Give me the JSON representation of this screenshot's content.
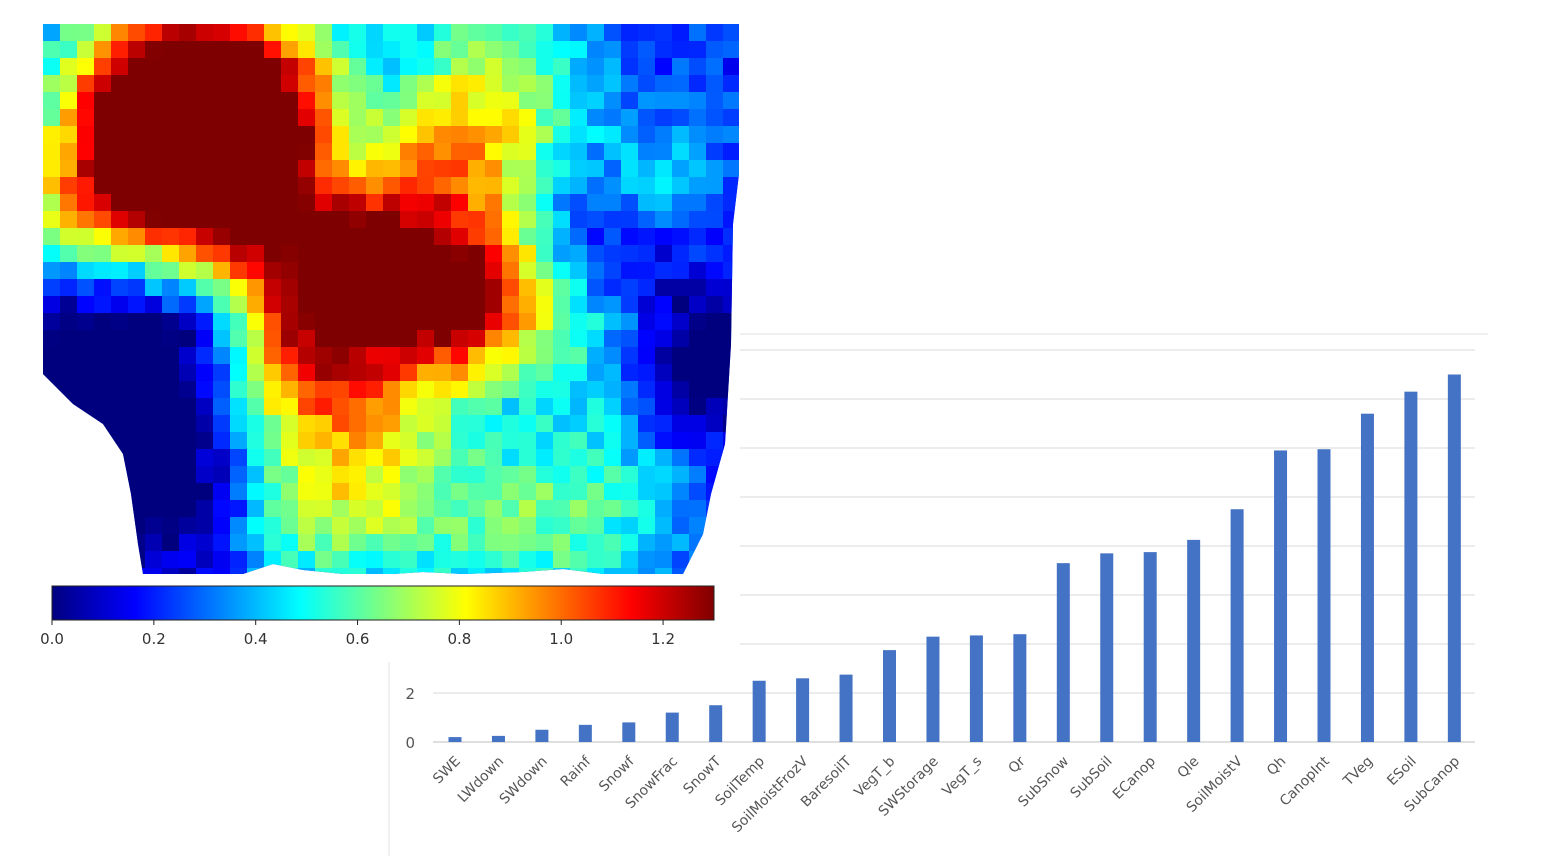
{
  "colorbar": {
    "ticks": [
      "0.0",
      "0.2",
      "0.4",
      "0.6",
      "0.8",
      "1.0",
      "1.2"
    ],
    "tick_values": [
      0.0,
      0.2,
      0.4,
      0.6,
      0.8,
      1.0,
      1.2
    ],
    "range": [
      0.0,
      1.3
    ],
    "colormap": "jet",
    "stops": [
      "#00007f",
      "#0000ff",
      "#007fff",
      "#00ffff",
      "#7fff7f",
      "#ffff00",
      "#ff7f00",
      "#ff0000",
      "#7f0000"
    ]
  },
  "map": {
    "ocean_color": "#ffffff",
    "low_color": "#00007f",
    "high_color": "#ff2a00"
  },
  "chart_data": {
    "type": "bar",
    "categories": [
      "SWE",
      "LWdown",
      "SWdown",
      "Rainf",
      "Snowf",
      "SnowFrac",
      "SnowT",
      "SoilTemp",
      "SoilMoistFrozV",
      "BaresoilT",
      "VegT_b",
      "SWStorage",
      "VegT_s",
      "Qr",
      "SubSnow",
      "SubSoil",
      "ECanop",
      "Qle",
      "SoilMoistV",
      "Qh",
      "CanopInt",
      "TVeg",
      "ESoil",
      "SubCanop"
    ],
    "values": [
      0.2,
      0.25,
      0.5,
      0.7,
      0.8,
      1.2,
      1.5,
      2.5,
      2.6,
      2.75,
      3.75,
      4.3,
      4.35,
      4.4,
      7.3,
      7.7,
      7.75,
      8.25,
      9.5,
      11.9,
      11.95,
      13.4,
      14.3,
      15.0
    ],
    "y_ticks_visible": [
      "0",
      "2"
    ],
    "ylim": [
      0,
      16
    ],
    "grid": true,
    "bar_color": "#4472c4",
    "grid_color": "#d9d9d9"
  }
}
